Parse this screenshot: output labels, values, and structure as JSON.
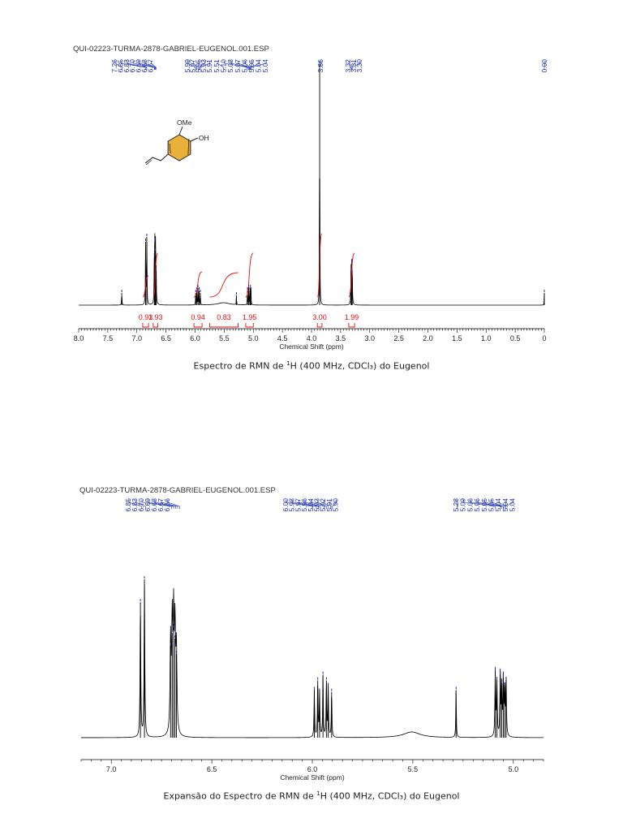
{
  "colors": {
    "spectrum": "#000000",
    "peak_labels": "#1b2fb5",
    "integrals": "#e01010",
    "molecule": "#e8b13a"
  },
  "chart_data": [
    {
      "type": "line",
      "header": "QUI-02223-TURMA-2878-GABRIEL-EUGENOL.001.ESP",
      "xlabel": "Chemical Shift (ppm)",
      "xlim": [
        8.0,
        0.0
      ],
      "x_reversed": true,
      "ticks": [
        "8.0",
        "7.5",
        "7.0",
        "6.5",
        "6.0",
        "5.5",
        "5.0",
        "4.5",
        "4.0",
        "3.5",
        "3.0",
        "2.5",
        "2.0",
        "1.5",
        "1.0",
        "0.5",
        "0"
      ],
      "tick_values": [
        8.0,
        7.5,
        7.0,
        6.5,
        6.0,
        5.5,
        5.0,
        4.5,
        4.0,
        3.5,
        3.0,
        2.5,
        2.0,
        1.5,
        1.0,
        0.5,
        0.0
      ],
      "peak_labels": [
        "7.26",
        "6.85",
        "6.83",
        "6.70",
        "6.69",
        "6.68",
        "6.67",
        "5.99",
        "5.97",
        "5.95",
        "5.93",
        "5.91",
        "5.51",
        "5.10",
        "5.08",
        "5.07",
        "5.06",
        "5.05",
        "5.04",
        "5.04",
        "3.86",
        "3.32",
        "3.31",
        "3.30",
        "0.00"
      ],
      "peaks": [
        {
          "x": 7.26,
          "h": 0.05,
          "w": 0.004
        },
        {
          "x": 6.85,
          "h": 0.26,
          "w": 0.004
        },
        {
          "x": 6.83,
          "h": 0.28,
          "w": 0.004
        },
        {
          "x": 6.7,
          "h": 0.2,
          "w": 0.004
        },
        {
          "x": 6.69,
          "h": 0.26,
          "w": 0.004
        },
        {
          "x": 6.68,
          "h": 0.22,
          "w": 0.004
        },
        {
          "x": 6.67,
          "h": 0.14,
          "w": 0.004
        },
        {
          "x": 5.99,
          "h": 0.05,
          "w": 0.003
        },
        {
          "x": 5.97,
          "h": 0.06,
          "w": 0.003
        },
        {
          "x": 5.95,
          "h": 0.07,
          "w": 0.003
        },
        {
          "x": 5.93,
          "h": 0.06,
          "w": 0.003
        },
        {
          "x": 5.91,
          "h": 0.05,
          "w": 0.003
        },
        {
          "x": 5.51,
          "h": 0.01,
          "w": 0.12
        },
        {
          "x": 5.29,
          "h": 0.04,
          "w": 0.003
        },
        {
          "x": 5.1,
          "h": 0.06,
          "w": 0.003
        },
        {
          "x": 5.08,
          "h": 0.07,
          "w": 0.003
        },
        {
          "x": 5.06,
          "h": 0.06,
          "w": 0.003
        },
        {
          "x": 5.05,
          "h": 0.07,
          "w": 0.003
        },
        {
          "x": 5.04,
          "h": 0.06,
          "w": 0.003
        },
        {
          "x": 3.86,
          "h": 0.99,
          "w": 0.003
        },
        {
          "x": 3.32,
          "h": 0.14,
          "w": 0.004
        },
        {
          "x": 3.31,
          "h": 0.17,
          "w": 0.004
        },
        {
          "x": 3.3,
          "h": 0.13,
          "w": 0.004
        },
        {
          "x": 0.0,
          "h": 0.05,
          "w": 0.003
        }
      ],
      "integrals": [
        {
          "label": "0.93",
          "from": 6.9,
          "to": 6.8
        },
        {
          "label": "1.93",
          "from": 6.72,
          "to": 6.64
        },
        {
          "label": "0.94",
          "from": 6.02,
          "to": 5.88
        },
        {
          "label": "0.83",
          "from": 5.75,
          "to": 5.26
        },
        {
          "label": "1.95",
          "from": 5.13,
          "to": 5.0
        },
        {
          "label": "3.00",
          "from": 3.9,
          "to": 3.82
        },
        {
          "label": "1.99",
          "from": 3.36,
          "to": 3.26
        }
      ],
      "molecule": {
        "substituent_1": "OMe",
        "substituent_2": "OH"
      }
    },
    {
      "type": "line",
      "header": "QUI-02223-TURMA-2878-GABRIEL-EUGENOL.001.ESP",
      "xlabel": "Chemical Shift (ppm)",
      "xlim": [
        7.15,
        4.85
      ],
      "x_reversed": true,
      "ticks": [
        "7.0",
        "6.5",
        "6.0",
        "5.5",
        "5.0"
      ],
      "tick_values": [
        7.0,
        6.5,
        6.0,
        5.5,
        5.0
      ],
      "peak_labels": [
        "6.85",
        "6.83",
        "6.70",
        "6.69",
        "6.68",
        "6.67",
        "6.66",
        "6.00",
        "5.98",
        "5.97",
        "5.96",
        "5.94",
        "5.93",
        "5.92",
        "5.91",
        "5.90",
        "5.28",
        "5.09",
        "5.06",
        "5.06",
        "5.05",
        "5.05",
        "5.04",
        "5.04",
        "5.04"
      ],
      "peaks": [
        {
          "x": 6.855,
          "h": 0.71,
          "w": 0.002
        },
        {
          "x": 6.835,
          "h": 0.83,
          "w": 0.002
        },
        {
          "x": 6.705,
          "h": 0.48,
          "w": 0.003
        },
        {
          "x": 6.697,
          "h": 0.55,
          "w": 0.003
        },
        {
          "x": 6.69,
          "h": 0.58,
          "w": 0.003
        },
        {
          "x": 6.683,
          "h": 0.52,
          "w": 0.003
        },
        {
          "x": 6.676,
          "h": 0.44,
          "w": 0.003
        },
        {
          "x": 5.99,
          "h": 0.25,
          "w": 0.0018
        },
        {
          "x": 5.973,
          "h": 0.3,
          "w": 0.0018
        },
        {
          "x": 5.964,
          "h": 0.24,
          "w": 0.0018
        },
        {
          "x": 5.947,
          "h": 0.33,
          "w": 0.0018
        },
        {
          "x": 5.93,
          "h": 0.3,
          "w": 0.0018
        },
        {
          "x": 5.921,
          "h": 0.27,
          "w": 0.0018
        },
        {
          "x": 5.904,
          "h": 0.24,
          "w": 0.0018
        },
        {
          "x": 5.505,
          "h": 0.03,
          "w": 0.05
        },
        {
          "x": 5.285,
          "h": 0.25,
          "w": 0.0016
        },
        {
          "x": 5.09,
          "h": 0.35,
          "w": 0.002
        },
        {
          "x": 5.082,
          "h": 0.3,
          "w": 0.002
        },
        {
          "x": 5.065,
          "h": 0.33,
          "w": 0.002
        },
        {
          "x": 5.058,
          "h": 0.28,
          "w": 0.002
        },
        {
          "x": 5.05,
          "h": 0.31,
          "w": 0.002
        },
        {
          "x": 5.043,
          "h": 0.27,
          "w": 0.002
        },
        {
          "x": 5.036,
          "h": 0.3,
          "w": 0.002
        }
      ]
    }
  ],
  "captions": {
    "top_before": "Espectro de RMN de ",
    "top_after": "H (400 MHz, CDCl₃) do Eugenol",
    "bottom_before": "Expansão do Espectro de RMN de ",
    "bottom_after": "H (400 MHz, CDCl₃) do Eugenol",
    "nucleus_mass": "1"
  }
}
